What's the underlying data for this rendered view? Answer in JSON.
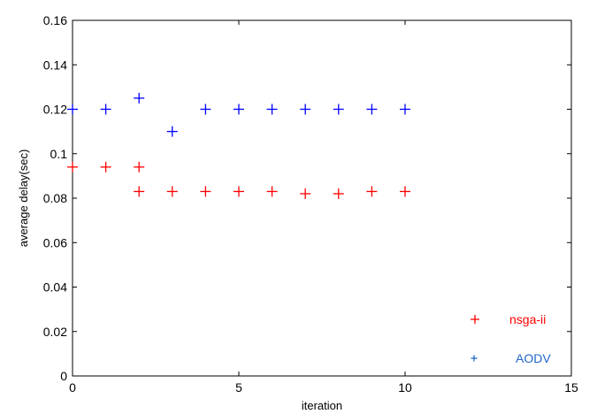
{
  "chart_data": {
    "type": "scatter",
    "title": "",
    "xlabel": "iteration",
    "ylabel": "average delay(sec)",
    "xlim": [
      0,
      15
    ],
    "ylim": [
      0,
      0.16
    ],
    "xticks": [
      "0",
      "5",
      "10",
      "15"
    ],
    "yticks": [
      "0",
      "0.02",
      "0.04",
      "0.06",
      "0.08",
      "0.1",
      "0.12",
      "0.14",
      "0.16"
    ],
    "grid": false,
    "legend_position": "bottom-right",
    "series": [
      {
        "name": "nsga-ii",
        "color": "#ff0000",
        "marker": "+",
        "points": [
          [
            0,
            0.094
          ],
          [
            1,
            0.094
          ],
          [
            2,
            0.094
          ],
          [
            2,
            0.083
          ],
          [
            3,
            0.083
          ],
          [
            4,
            0.083
          ],
          [
            5,
            0.083
          ],
          [
            6,
            0.083
          ],
          [
            7,
            0.082
          ],
          [
            8,
            0.082
          ],
          [
            9,
            0.083
          ],
          [
            10,
            0.083
          ]
        ]
      },
      {
        "name": "AODV",
        "color": "#0000ff",
        "marker": "+",
        "points": [
          [
            0,
            0.12
          ],
          [
            1,
            0.12
          ],
          [
            2,
            0.125
          ],
          [
            3,
            0.11
          ],
          [
            4,
            0.12
          ],
          [
            5,
            0.12
          ],
          [
            6,
            0.12
          ],
          [
            7,
            0.12
          ],
          [
            8,
            0.12
          ],
          [
            9,
            0.12
          ],
          [
            10,
            0.12
          ]
        ]
      }
    ],
    "legend": [
      {
        "label": "nsga-ii",
        "marker_color": "#ff0000",
        "text_color": "#ff0000"
      },
      {
        "label": "AODV",
        "marker_color": "#2266cc",
        "text_color": "#2266cc"
      }
    ]
  }
}
